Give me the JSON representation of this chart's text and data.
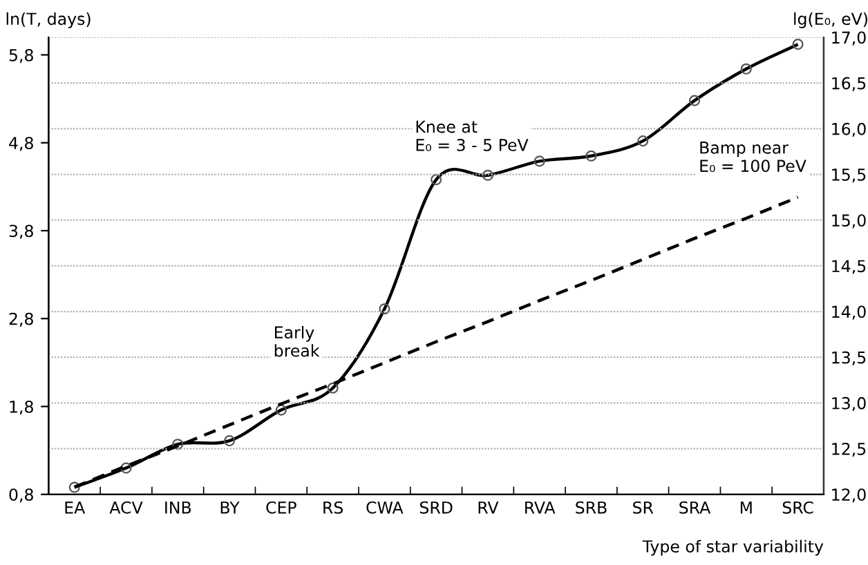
{
  "chart_data": {
    "type": "line",
    "xlabel": "Type of star variability",
    "ylabel": "ln(T, days)",
    "y2label": "lg(E₀, eV)",
    "categories": [
      "EA",
      "ACV",
      "INB",
      "BY",
      "CEP",
      "RS",
      "CWA",
      "SRD",
      "RV",
      "RVA",
      "SRB",
      "SR",
      "SRA",
      "M",
      "SRC"
    ],
    "series": [
      {
        "color": "#000000",
        "marker": "circle",
        "line_style": "solid",
        "values": [
          0.88,
          1.1,
          1.37,
          1.41,
          1.76,
          2.01,
          2.91,
          4.38,
          4.43,
          4.59,
          4.65,
          4.82,
          5.28,
          5.64,
          5.92
        ]
      },
      {
        "color": "#000000",
        "marker": "none",
        "line_style": "dashed",
        "axis": "y2",
        "values": [
          12.08,
          12.31,
          12.53,
          12.76,
          12.99,
          13.21,
          13.44,
          13.67,
          13.89,
          14.12,
          14.34,
          14.57,
          14.8,
          15.02,
          15.25
        ]
      }
    ],
    "ylim": [
      0.8,
      6.0
    ],
    "yticks": [
      {
        "value": 0.8,
        "label": "0,8"
      },
      {
        "value": 1.8,
        "label": "1,8"
      },
      {
        "value": 2.8,
        "label": "2,8"
      },
      {
        "value": 3.8,
        "label": "3,8"
      },
      {
        "value": 4.8,
        "label": "4,8"
      },
      {
        "value": 5.8,
        "label": "5,8"
      }
    ],
    "y2lim": [
      12.0,
      17.0
    ],
    "y2ticks": [
      {
        "value": 12.0,
        "label": "12,0"
      },
      {
        "value": 12.5,
        "label": "12,5"
      },
      {
        "value": 13.0,
        "label": "13,0"
      },
      {
        "value": 13.5,
        "label": "13,5"
      },
      {
        "value": 14.0,
        "label": "14,0"
      },
      {
        "value": 14.5,
        "label": "14,5"
      },
      {
        "value": 15.0,
        "label": "15,0"
      },
      {
        "value": 15.5,
        "label": "15,5"
      },
      {
        "value": 16.0,
        "label": "16,0"
      },
      {
        "value": 16.5,
        "label": "16,5"
      },
      {
        "value": 17.0,
        "label": "17,0"
      }
    ],
    "grid": "y",
    "annotations": [
      "Early\nbreak",
      "Knee at\nE₀ = 3 - 5 PeV",
      "Bamp near\nE₀ = 100 PeV"
    ]
  }
}
